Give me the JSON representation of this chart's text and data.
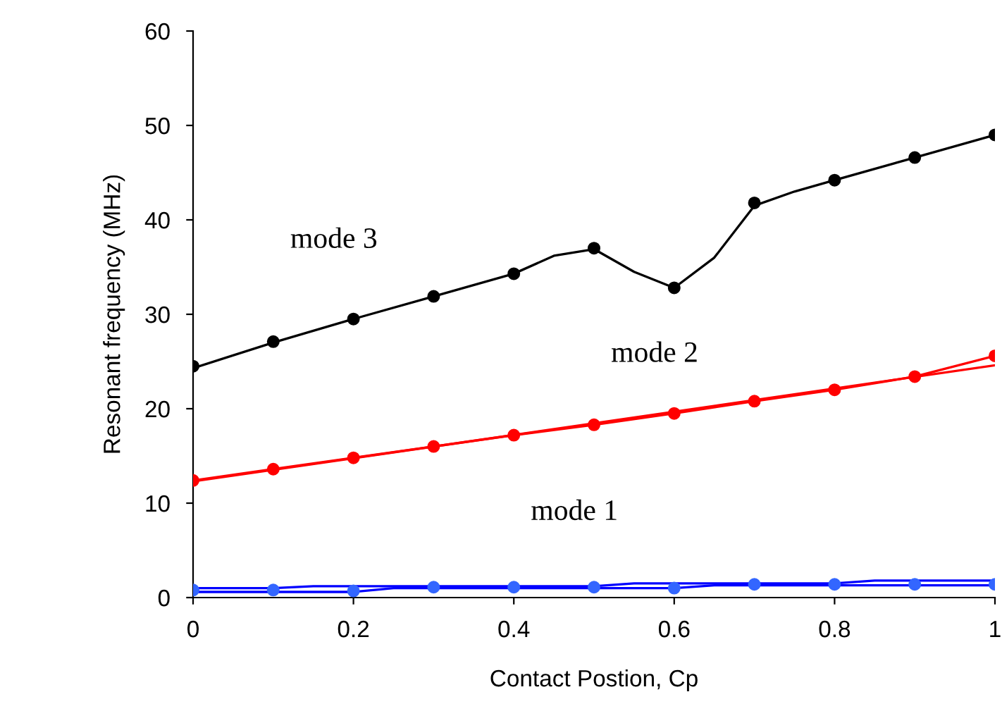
{
  "chart_data": {
    "type": "line",
    "xlabel": "Contact Postion, Cp",
    "ylabel": "Resonant frequency (MHz)",
    "xlim": [
      0,
      1
    ],
    "ylim": [
      0,
      60
    ],
    "xticks": [
      0,
      0.2,
      0.4,
      0.6,
      0.8,
      1
    ],
    "yticks": [
      0,
      10,
      20,
      30,
      40,
      50,
      60
    ],
    "grid": false,
    "legend": false,
    "series": [
      {
        "marker": "none",
        "color": "#000000",
        "x": [
          0,
          0.1,
          0.2,
          0.3,
          0.4,
          0.45,
          0.5,
          0.55,
          0.6,
          0.65,
          0.7,
          0.75,
          0.8,
          0.9,
          1
        ],
        "values": [
          24.3,
          27.0,
          29.5,
          31.9,
          34.3,
          36.2,
          36.9,
          34.5,
          32.8,
          36.0,
          41.5,
          43.0,
          44.2,
          46.6,
          49.0
        ]
      },
      {
        "type": "scatter",
        "name": "mode 3",
        "marker": "circle",
        "color": "#000000",
        "x": [
          0,
          0.1,
          0.2,
          0.3,
          0.4,
          0.5,
          0.6,
          0.7,
          0.8,
          0.9,
          1
        ],
        "values": [
          24.5,
          27.1,
          29.5,
          31.9,
          34.3,
          37.0,
          32.8,
          41.8,
          44.2,
          46.6,
          49.0
        ]
      },
      {
        "marker": "none",
        "color": "#ff0000",
        "x": [
          0,
          1
        ],
        "values": [
          12.3,
          24.6
        ]
      },
      {
        "marker": "none",
        "color": "#ff0000",
        "x": [
          0,
          0.1,
          0.2,
          0.3,
          0.4,
          0.5,
          0.6,
          0.7,
          0.8,
          0.9,
          1
        ],
        "values": [
          12.4,
          13.6,
          14.8,
          16.0,
          17.2,
          18.3,
          19.5,
          20.8,
          22.0,
          23.4,
          25.6
        ]
      },
      {
        "type": "scatter",
        "name": "mode 2",
        "marker": "circle",
        "color": "#ff0000",
        "x": [
          0,
          0.1,
          0.2,
          0.3,
          0.4,
          0.5,
          0.6,
          0.7,
          0.8,
          0.9,
          1
        ],
        "values": [
          12.4,
          13.6,
          14.8,
          16.0,
          17.2,
          18.3,
          19.5,
          20.8,
          22.0,
          23.4,
          25.6
        ]
      },
      {
        "marker": "none",
        "color": "#0000ff",
        "x": [
          0,
          0.1,
          0.15,
          0.5,
          0.55,
          0.8,
          0.85,
          1
        ],
        "values": [
          1.0,
          1.0,
          1.2,
          1.2,
          1.5,
          1.5,
          1.8,
          1.8
        ]
      },
      {
        "marker": "none",
        "color": "#0000ff",
        "x": [
          0,
          0.2,
          0.25,
          0.6,
          0.65,
          1
        ],
        "values": [
          0.6,
          0.6,
          1.0,
          1.0,
          1.3,
          1.3
        ]
      },
      {
        "type": "scatter",
        "name": "mode 1",
        "marker": "circle",
        "color": "#3366ff",
        "x": [
          0,
          0.1,
          0.2,
          0.3,
          0.4,
          0.5,
          0.6,
          0.7,
          0.8,
          0.9,
          1
        ],
        "values": [
          0.8,
          0.8,
          0.7,
          1.1,
          1.1,
          1.1,
          1.0,
          1.4,
          1.4,
          1.4,
          1.4
        ]
      }
    ]
  }
}
